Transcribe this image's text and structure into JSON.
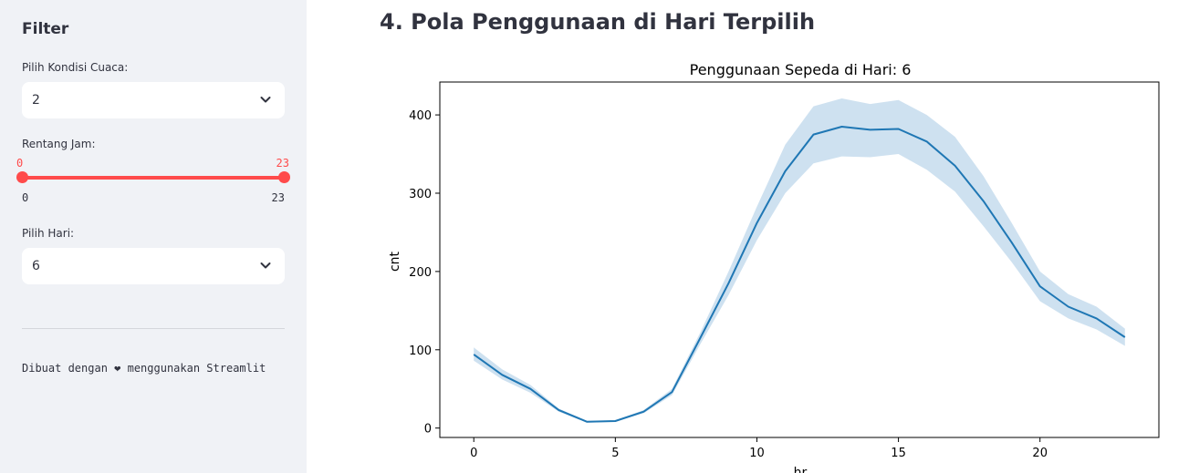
{
  "sidebar": {
    "title": "Filter",
    "weather": {
      "label": "Pilih Kondisi Cuaca:",
      "value": "2"
    },
    "hours": {
      "label": "Rentang Jam:",
      "low": 0,
      "high": 23,
      "low_text": "0",
      "high_text": "23",
      "min_text": "0",
      "max_text": "23"
    },
    "day": {
      "label": "Pilih Hari:",
      "value": "6"
    },
    "footer": "Dibuat dengan ❤ menggunakan Streamlit"
  },
  "main": {
    "heading": "4. Pola Penggunaan di Hari Terpilih"
  },
  "colors": {
    "accent": "#ff4b4b",
    "line": "#1f77b4",
    "band": "#a6c8e4"
  },
  "chart_data": {
    "type": "line",
    "title": "Penggunaan Sepeda di Hari: 6",
    "xlabel": "hr",
    "ylabel": "cnt",
    "xlim": [
      -1.2,
      24.2
    ],
    "ylim": [
      -12,
      442
    ],
    "xticks": [
      0,
      5,
      10,
      15,
      20
    ],
    "yticks": [
      0,
      100,
      200,
      300,
      400
    ],
    "grid": false,
    "series": [
      {
        "x": [
          0,
          1,
          2,
          3,
          4,
          5,
          6,
          7,
          8,
          9,
          10,
          11,
          12,
          13,
          14,
          15,
          16,
          17,
          18,
          19,
          20,
          21,
          22,
          23
        ],
        "values": [
          94,
          68,
          50,
          23,
          8,
          9,
          21,
          46,
          115,
          185,
          262,
          328,
          375,
          385,
          381,
          382,
          366,
          335,
          290,
          237,
          181,
          155,
          140,
          116
        ],
        "lower": [
          86,
          62,
          45,
          21,
          7,
          8,
          19,
          42,
          107,
          170,
          240,
          300,
          338,
          347,
          346,
          350,
          330,
          302,
          258,
          212,
          162,
          140,
          126,
          105
        ],
        "upper": [
          103,
          75,
          55,
          25,
          9,
          10,
          23,
          50,
          122,
          200,
          283,
          362,
          411,
          421,
          414,
          419,
          400,
          372,
          322,
          262,
          200,
          171,
          155,
          127
        ]
      }
    ]
  }
}
